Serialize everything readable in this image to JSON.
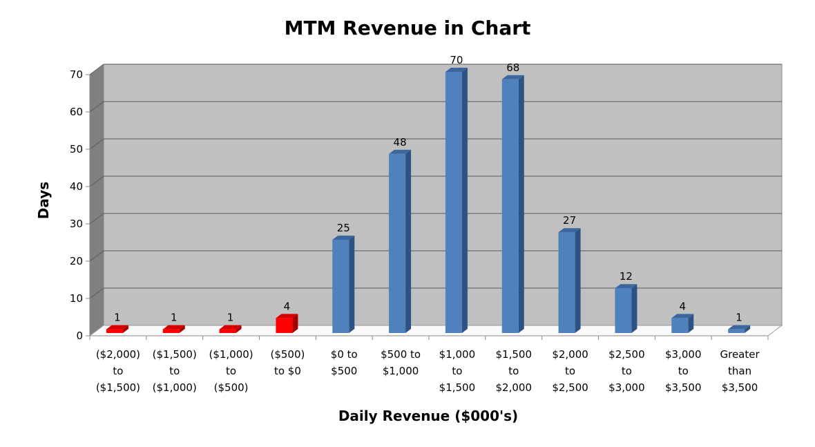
{
  "chart_data": {
    "type": "bar",
    "title": "MTM Revenue in Chart",
    "xlabel": "Daily Revenue ($000's)",
    "ylabel": "Days",
    "ylim": [
      0,
      70
    ],
    "yticks": [
      0,
      10,
      20,
      30,
      40,
      50,
      60,
      70
    ],
    "grid": true,
    "style": "3d-column",
    "categories": [
      [
        "($2,000)",
        "to",
        "($1,500)"
      ],
      [
        "($1,500)",
        "to",
        "($1,000)"
      ],
      [
        "($1,000)",
        "to",
        "($500)"
      ],
      [
        "($500)",
        "to $0"
      ],
      [
        "$0 to",
        "$500"
      ],
      [
        "$500 to",
        "$1,000"
      ],
      [
        "$1,000",
        "to",
        "$1,500"
      ],
      [
        "$1,500",
        "to",
        "$2,000"
      ],
      [
        "$2,000",
        "to",
        "$2,500"
      ],
      [
        "$2,500",
        "to",
        "$3,000"
      ],
      [
        "$3,000",
        "to",
        "$3,500"
      ],
      [
        "Greater",
        "than",
        "$3,500"
      ]
    ],
    "values": [
      1,
      1,
      1,
      4,
      25,
      48,
      70,
      68,
      27,
      12,
      4,
      1
    ],
    "colors": {
      "negative": "#ff0000",
      "positive": "#4f81bd",
      "wall": "#c0c0c0",
      "side_wall": "#808080"
    }
  }
}
